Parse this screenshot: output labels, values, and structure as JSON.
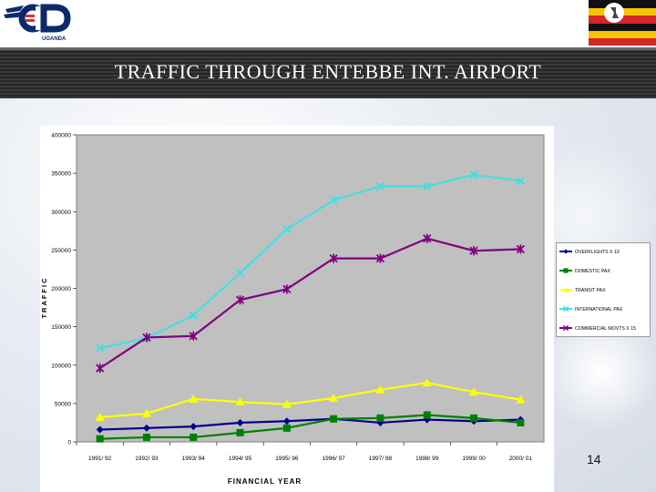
{
  "slide": {
    "title": "TRAFFIC THROUGH ENTEBBE INT. AIRPORT",
    "page_number": "14",
    "logo_text": "UGANDA"
  },
  "colors": {
    "plot_bg": "#c0c0c0",
    "overflights": "#00008b",
    "domestic": "#008000",
    "transit": "#ffff00",
    "international": "#40e0e0",
    "commercial": "#800080"
  },
  "chart_data": {
    "type": "line",
    "title": "",
    "xlabel": "FINANCIAL YEAR",
    "ylabel": "TRAFFIC",
    "ylim": [
      0,
      400000
    ],
    "yticks": [
      "0",
      "50000",
      "100000",
      "150000",
      "200000",
      "250000",
      "300000",
      "350000",
      "400000"
    ],
    "categories": [
      "1991/ 92",
      "1992/ 93",
      "1993/ 94",
      "1994/ 95",
      "1995/ 96",
      "1996/ 97",
      "1997/ 98",
      "1998/ 99",
      "1999/ 00",
      "2000/ 01"
    ],
    "legend_position": "right",
    "series": [
      {
        "name": "OVERFLIGHTS X 10",
        "marker": "diamond",
        "color": "#00008b",
        "values": [
          16000,
          18000,
          20000,
          25000,
          27000,
          30000,
          25000,
          29000,
          27000,
          29000
        ]
      },
      {
        "name": "DOMESTIC PAX",
        "marker": "square",
        "color": "#008000",
        "values": [
          4000,
          6000,
          6000,
          12000,
          18000,
          30000,
          31000,
          35000,
          31000,
          25000
        ]
      },
      {
        "name": "TRANSIT PAX",
        "marker": "triangle",
        "color": "#ffff00",
        "values": [
          32000,
          37000,
          56000,
          52000,
          49000,
          57000,
          68000,
          77000,
          65000,
          55000
        ]
      },
      {
        "name": "INTERNATIONAL PAX",
        "marker": "x",
        "color": "#40e0e0",
        "values": [
          122000,
          135000,
          165000,
          220000,
          277000,
          315000,
          333000,
          333000,
          348000,
          340000
        ]
      },
      {
        "name": "COMMERCIAL MOVTS X 15",
        "marker": "star",
        "color": "#800080",
        "values": [
          96000,
          136000,
          138000,
          185000,
          199000,
          239000,
          239000,
          265000,
          249000,
          251000
        ]
      }
    ]
  }
}
